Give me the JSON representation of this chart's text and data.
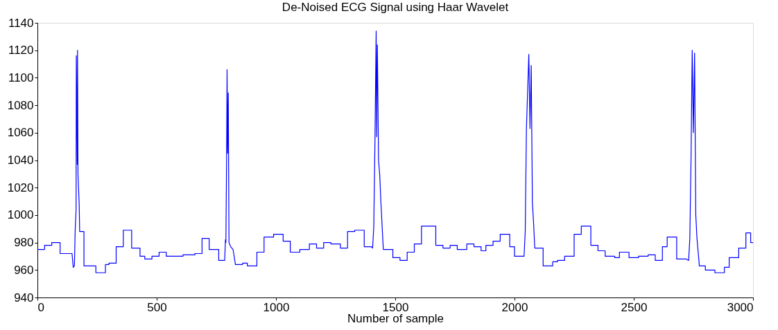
{
  "chart_data": {
    "type": "line",
    "title": "De-Noised ECG Signal using Haar Wavelet",
    "xlabel": "Number of sample",
    "x": [
      0,
      30,
      30,
      60,
      60,
      95,
      95,
      145,
      150,
      155,
      158,
      162,
      163,
      167,
      168,
      170,
      175,
      177,
      195,
      195,
      245,
      245,
      285,
      285,
      300,
      300,
      330,
      330,
      360,
      360,
      395,
      395,
      430,
      430,
      450,
      450,
      480,
      480,
      510,
      510,
      540,
      540,
      610,
      610,
      660,
      660,
      690,
      690,
      720,
      720,
      760,
      760,
      785,
      788,
      790,
      793,
      795,
      797,
      800,
      803,
      810,
      820,
      830,
      860,
      860,
      880,
      880,
      920,
      920,
      950,
      950,
      990,
      990,
      1030,
      1030,
      1060,
      1060,
      1100,
      1100,
      1140,
      1140,
      1170,
      1170,
      1200,
      1200,
      1230,
      1230,
      1270,
      1270,
      1300,
      1300,
      1330,
      1330,
      1370,
      1370,
      1400,
      1405,
      1410,
      1415,
      1420,
      1422,
      1425,
      1430,
      1435,
      1440,
      1450,
      1490,
      1490,
      1520,
      1520,
      1550,
      1550,
      1580,
      1580,
      1610,
      1610,
      1670,
      1670,
      1700,
      1700,
      1730,
      1730,
      1760,
      1760,
      1800,
      1800,
      1830,
      1830,
      1860,
      1860,
      1880,
      1880,
      1910,
      1910,
      1940,
      1940,
      1980,
      1980,
      2000,
      2000,
      2040,
      2045,
      2050,
      2060,
      2065,
      2070,
      2075,
      2080,
      2085,
      2120,
      2120,
      2160,
      2160,
      2180,
      2180,
      2210,
      2210,
      2250,
      2250,
      2280,
      2280,
      2320,
      2320,
      2350,
      2350,
      2380,
      2380,
      2420,
      2420,
      2440,
      2440,
      2480,
      2480,
      2520,
      2520,
      2560,
      2560,
      2590,
      2590,
      2620,
      2620,
      2640,
      2640,
      2680,
      2680,
      2720,
      2730,
      2735,
      2740,
      2745,
      2750,
      2755,
      2760,
      2765,
      2775,
      2800,
      2800,
      2840,
      2840,
      2880,
      2880,
      2900,
      2900,
      2940,
      2940,
      2970,
      2970,
      2990,
      2990,
      3000
    ],
    "series": [
      {
        "color": "#0000ff",
        "values": [
          975,
          975,
          978,
          978,
          980,
          980,
          972,
          972,
          962,
          963,
          988,
          1004,
          1116,
          1037,
          1120,
          1030,
          1008,
          988,
          988,
          963,
          963,
          958,
          958,
          964,
          964,
          965,
          965,
          977,
          977,
          989,
          989,
          976,
          976,
          970,
          970,
          968,
          968,
          970,
          970,
          973,
          973,
          970,
          970,
          971,
          971,
          972,
          972,
          983,
          983,
          975,
          975,
          967,
          967,
          982,
          980,
          1040,
          1106,
          1045,
          1089,
          980,
          977,
          975,
          964,
          964,
          965,
          965,
          963,
          963,
          973,
          973,
          984,
          984,
          986,
          986,
          981,
          981,
          973,
          973,
          975,
          975,
          979,
          979,
          976,
          976,
          980,
          980,
          979,
          979,
          976,
          976,
          988,
          988,
          989,
          989,
          977,
          977,
          976,
          991,
          1054,
          1134,
          1057,
          1124,
          1040,
          1029,
          1009,
          975,
          975,
          969,
          969,
          967,
          967,
          973,
          973,
          979,
          979,
          992,
          992,
          978,
          978,
          976,
          976,
          978,
          978,
          975,
          975,
          979,
          979,
          977,
          977,
          974,
          974,
          978,
          978,
          981,
          981,
          986,
          986,
          977,
          977,
          970,
          970,
          988,
          1063,
          1117,
          1063,
          1109,
          1009,
          994,
          976,
          976,
          963,
          963,
          966,
          966,
          967,
          967,
          970,
          970,
          986,
          986,
          992,
          992,
          978,
          978,
          974,
          974,
          970,
          970,
          969,
          969,
          973,
          973,
          969,
          969,
          970,
          970,
          971,
          971,
          967,
          967,
          977,
          977,
          984,
          984,
          968,
          968,
          967,
          983,
          1040,
          1120,
          1060,
          1118,
          1000,
          983,
          963,
          963,
          960,
          960,
          958,
          958,
          962,
          962,
          969,
          969,
          976,
          976,
          987,
          987,
          980,
          980
        ]
      }
    ],
    "xlim": [
      0,
      3000
    ],
    "xticks": [
      0,
      500,
      1000,
      1500,
      2000,
      2500,
      3000
    ],
    "ylim": [
      940,
      1140
    ],
    "yticks": [
      940,
      960,
      980,
      1000,
      1020,
      1040,
      1060,
      1080,
      1100,
      1120,
      1140
    ],
    "grid": false
  }
}
